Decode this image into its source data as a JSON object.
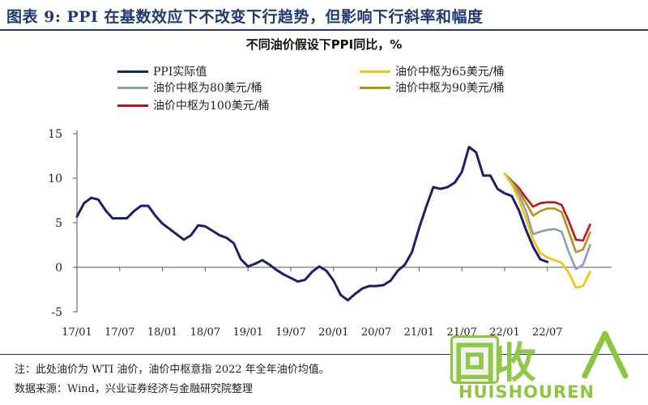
{
  "figure_title": "图表 9: PPI 在基数效应下不改变下行趋势，但影响下行斜率和幅度",
  "notes": {
    "note": "注：此处油价为 WTI 油价，油价中枢意指 2022 年全年油价均值。",
    "source": "数据来源：Wind，兴业证券经济与金融研究院整理"
  },
  "watermark": {
    "cn": "回收",
    "en": "HUISHOUREN",
    "color": "#8cc63f"
  },
  "chart_data": {
    "type": "line",
    "title": "不同油价假设下PPI同比，%",
    "x_tick_labels": [
      "17/01",
      "17/07",
      "18/01",
      "18/07",
      "19/01",
      "19/07",
      "20/01",
      "20/07",
      "21/01",
      "21/07",
      "22/01",
      "22/07"
    ],
    "y_ticks": [
      15,
      10,
      5,
      0,
      -5
    ],
    "ylim": [
      -5,
      15
    ],
    "xlim": [
      0,
      75
    ],
    "legend_position": "top",
    "series": [
      {
        "name": "PPI实际值",
        "color": "#1c1f6e",
        "x_start": 0,
        "values": [
          5.7,
          7.2,
          7.8,
          7.6,
          6.4,
          5.5,
          5.5,
          5.5,
          6.3,
          6.9,
          6.9,
          5.8,
          4.9,
          4.3,
          3.7,
          3.1,
          3.6,
          4.7,
          4.6,
          4.1,
          3.6,
          3.3,
          2.7,
          0.9,
          0.1,
          0.4,
          0.8,
          0.3,
          -0.3,
          -0.8,
          -1.2,
          -1.6,
          -1.4,
          -0.5,
          0.1,
          -0.4,
          -1.5,
          -3.1,
          -3.7,
          -3.0,
          -2.4,
          -2.1,
          -2.1,
          -2.0,
          -1.5,
          -0.4,
          0.3,
          1.7,
          4.4,
          6.8,
          9.0,
          8.8,
          9.0,
          9.5,
          10.7,
          13.5,
          12.9,
          10.3,
          10.3,
          8.8,
          8.3,
          8.0,
          6.4,
          4.2,
          2.3,
          0.9,
          0.6
        ]
      },
      {
        "name": "油价中枢为65美元/桶",
        "color": "#f2c40f",
        "x_start": 60,
        "values": [
          10.5,
          9.3,
          7.6,
          5.4,
          3.1,
          1.6,
          1.1,
          0.8,
          0.5,
          -0.6,
          -2.3,
          -2.1,
          -0.5
        ]
      },
      {
        "name": "油价中枢为80美元/桶",
        "color": "#8c9db6",
        "x_start": 60,
        "values": [
          10.5,
          9.5,
          8.2,
          6.3,
          3.7,
          4.0,
          4.2,
          4.3,
          4.0,
          1.7,
          -0.2,
          0.3,
          2.5
        ]
      },
      {
        "name": "油价中枢为90美元/桶",
        "color": "#b8901a",
        "x_start": 60,
        "values": [
          10.5,
          9.6,
          8.6,
          7.2,
          5.8,
          6.3,
          6.6,
          6.6,
          6.2,
          4.0,
          1.7,
          2.0,
          3.9
        ]
      },
      {
        "name": "油价中枢为100美元/桶",
        "color": "#c0141b",
        "x_start": 60,
        "values": [
          10.5,
          9.7,
          8.9,
          7.8,
          6.8,
          7.2,
          7.3,
          7.3,
          7.0,
          5.2,
          3.1,
          3.0,
          4.8
        ]
      }
    ]
  }
}
